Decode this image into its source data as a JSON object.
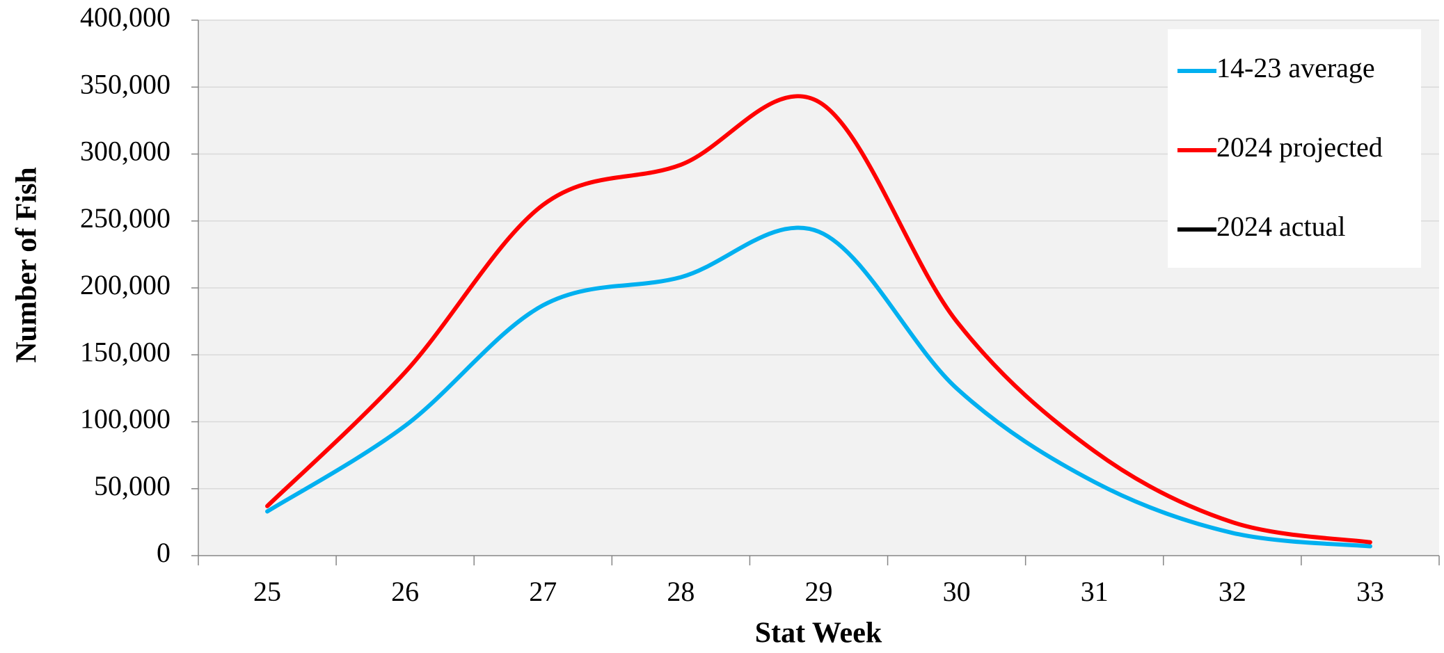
{
  "chart_data": {
    "type": "line",
    "x_label": "Stat Week",
    "y_label": "Number of Fish",
    "categories": [
      "25",
      "26",
      "27",
      "28",
      "29",
      "30",
      "31",
      "32",
      "33"
    ],
    "series": [
      {
        "name": "14-23 average",
        "color": "#00b0f0",
        "values": [
          33000,
          97000,
          187000,
          208000,
          242000,
          125000,
          55000,
          17000,
          7000
        ]
      },
      {
        "name": "2024 projected",
        "color": "#ff0000",
        "values": [
          37000,
          137000,
          262000,
          292000,
          339000,
          175000,
          78000,
          25000,
          10000
        ]
      },
      {
        "name": "2024 actual",
        "color": "#000000",
        "values": [
          null,
          null,
          null,
          null,
          null,
          null,
          null,
          null,
          null
        ]
      }
    ],
    "ylim": [
      0,
      400000
    ],
    "yticks": [
      0,
      {
        "value": 50000,
        "label": "50,000"
      },
      {
        "value": 100000,
        "label": "100,000"
      },
      {
        "value": 150000,
        "label": "150,000"
      },
      {
        "value": 200000,
        "label": "200,000"
      },
      {
        "value": 250000,
        "label": "250,000"
      },
      {
        "value": 300000,
        "label": "300,000"
      },
      {
        "value": 350000,
        "label": "350,000"
      },
      {
        "value": 400000,
        "label": "400,000"
      }
    ],
    "grid": true,
    "smooth": true,
    "legend": "top-right"
  }
}
